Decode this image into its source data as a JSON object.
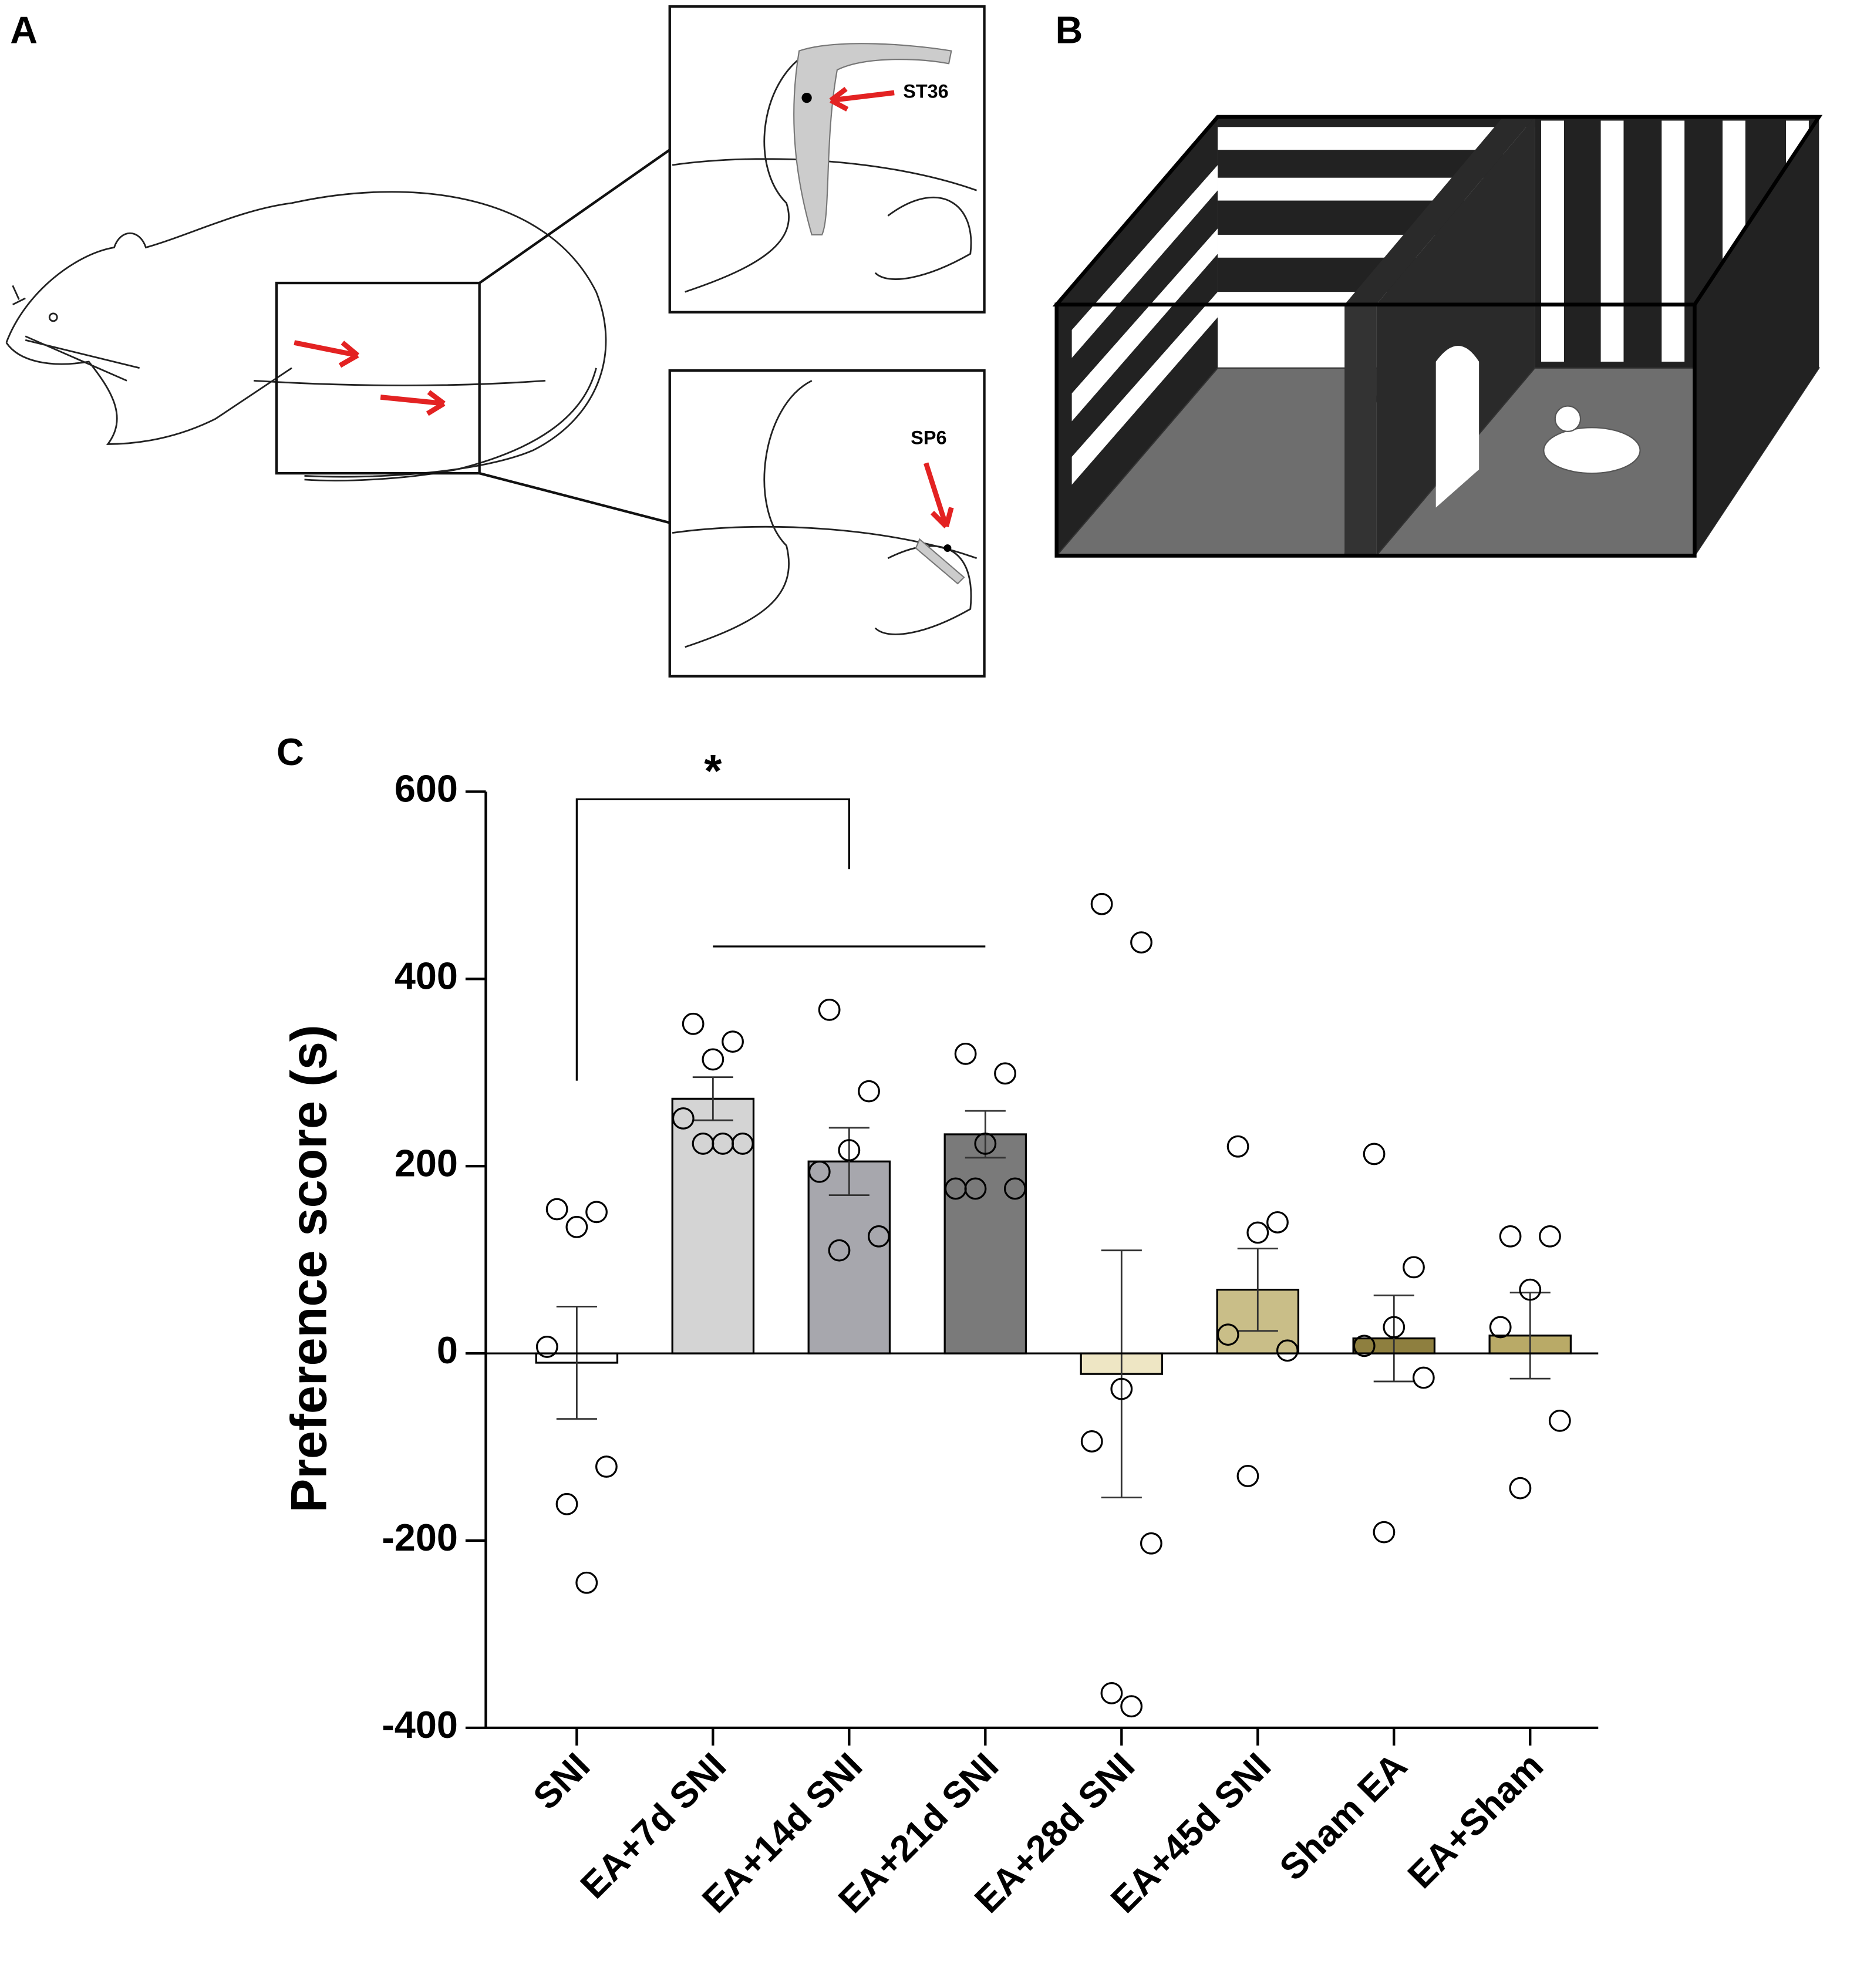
{
  "panels": {
    "a": {
      "label": "A",
      "annotations": [
        "ST36",
        "SP6"
      ]
    },
    "b": {
      "label": "B"
    },
    "c": {
      "label": "C"
    }
  },
  "chart_data": {
    "type": "bar",
    "y_label": "Preference score (s)",
    "categories": [
      "SNI",
      "EA+7d SNI",
      "EA+14d SNI",
      "EA+21d SNI",
      "EA+28d SNI",
      "EA+45d SNI",
      "Sham EA",
      "EA+Sham"
    ],
    "values": [
      -10,
      272,
      205,
      234,
      -22,
      68,
      16,
      19
    ],
    "errors": [
      60,
      23,
      36,
      25,
      132,
      44,
      46,
      46
    ],
    "colors": [
      "#ffffff",
      "#d4d4d4",
      "#a7a7ad",
      "#7a7a7a",
      "#eee6c4",
      "#c9be88",
      "#8e7f3f",
      "#b9aa67"
    ],
    "points": [
      [
        154,
        151,
        135,
        7,
        -121,
        -161,
        -245
      ],
      [
        352,
        333,
        314,
        251,
        224,
        224,
        224
      ],
      [
        367,
        280,
        217,
        194,
        125,
        110
      ],
      [
        320,
        299,
        224,
        176,
        176,
        176
      ],
      [
        480,
        439,
        -38,
        -94,
        -203,
        -363,
        -377
      ],
      [
        221,
        140,
        129,
        20,
        3,
        -131
      ],
      [
        213,
        92,
        28,
        8,
        -26,
        -191
      ],
      [
        125,
        125,
        68,
        28,
        -72,
        -144
      ]
    ],
    "significance": "*",
    "ylim": [
      -400,
      600
    ],
    "yticks": [
      600,
      400,
      200,
      0,
      -200,
      -400
    ]
  }
}
